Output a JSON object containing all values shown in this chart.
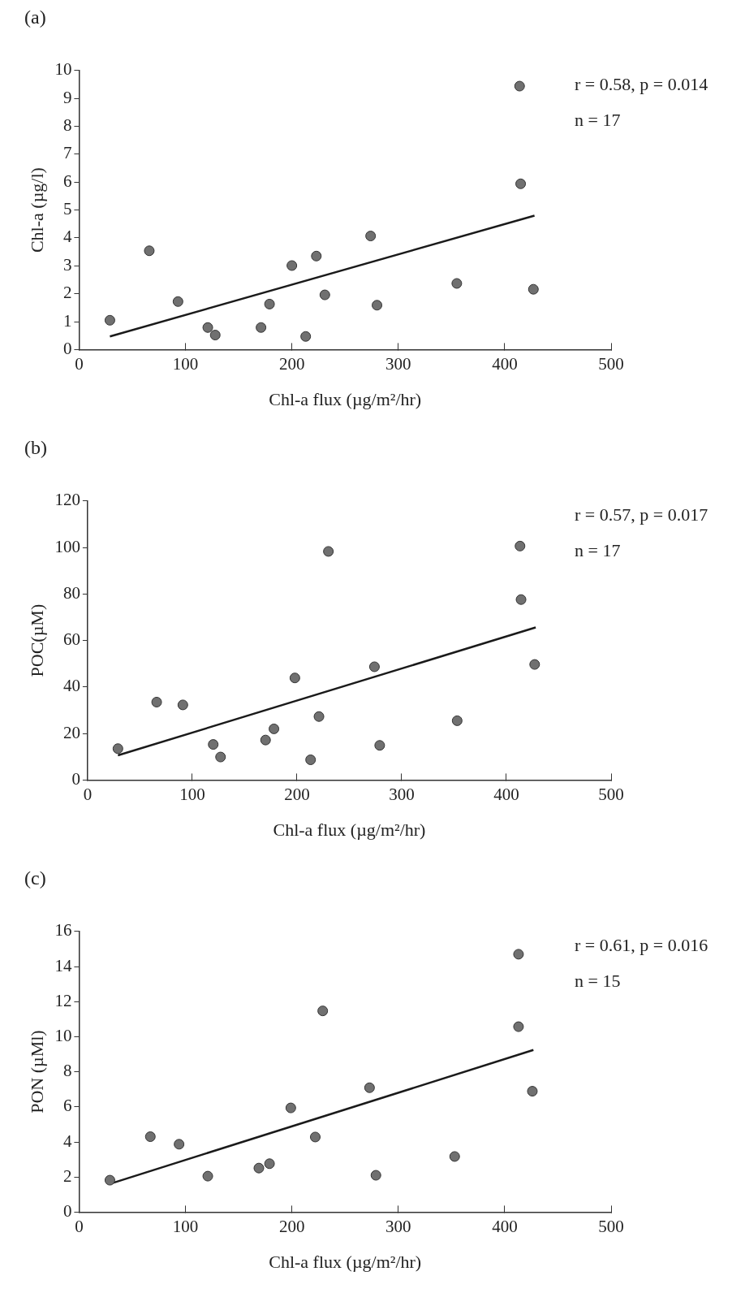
{
  "chart_data": [
    {
      "type": "scatter",
      "title": "(a)",
      "xlabel": "Chl-a flux (µg/m²/hr)",
      "ylabel": "Chl-a (µg/l)",
      "x": [
        29,
        66,
        93,
        121,
        128,
        171,
        179,
        200,
        213,
        223,
        231,
        274,
        280,
        355,
        414,
        415,
        427
      ],
      "series": [
        {
          "color": "#707070",
          "marker": "circle",
          "values": [
            1.05,
            3.54,
            1.72,
            0.79,
            0.52,
            0.79,
            1.63,
            3.01,
            0.47,
            3.35,
            1.96,
            4.07,
            1.59,
            2.37,
            9.44,
            5.94,
            2.16
          ]
        },
        {
          "type": "line",
          "color": "#1a1a1a",
          "marker": "none",
          "x": [
            29,
            428
          ],
          "values": [
            0.47,
            4.8
          ]
        }
      ],
      "xlim": [
        0,
        500
      ],
      "xticks": [
        0,
        100,
        200,
        300,
        400,
        500
      ],
      "ylim": [
        0,
        10
      ],
      "yticks": [
        0,
        1,
        2,
        3,
        4,
        5,
        6,
        7,
        8,
        9,
        10
      ],
      "annotations": [
        "r = 0.58, p = 0.014",
        "n = 17"
      ],
      "grid": false,
      "legend": false
    },
    {
      "type": "scatter",
      "title": "(b)",
      "xlabel": "Chl-a flux (µg/m²/hr)",
      "ylabel": "POC(µM)",
      "x": [
        29,
        66,
        91,
        120,
        127,
        170,
        178,
        198,
        213,
        221,
        230,
        274,
        279,
        353,
        413,
        414,
        427
      ],
      "series": [
        {
          "color": "#707070",
          "marker": "circle",
          "values": [
            13.5,
            33.5,
            32.3,
            15.3,
            9.9,
            17.2,
            22.0,
            43.9,
            8.7,
            27.3,
            98.3,
            48.7,
            14.9,
            25.5,
            100.6,
            77.6,
            49.7
          ]
        },
        {
          "type": "line",
          "color": "#1a1a1a",
          "marker": "none",
          "x": [
            29,
            428
          ],
          "values": [
            10.6,
            65.6
          ]
        }
      ],
      "xlim": [
        0,
        500
      ],
      "xticks": [
        0,
        100,
        200,
        300,
        400,
        500
      ],
      "ylim": [
        0,
        120
      ],
      "yticks": [
        0,
        20,
        40,
        60,
        80,
        100,
        120
      ],
      "annotations": [
        "r = 0.57, p = 0.017",
        "n = 17"
      ],
      "grid": false,
      "legend": false
    },
    {
      "type": "scatter",
      "title": "(c)",
      "xlabel": "Chl-a flux (µg/m²/hr)",
      "ylabel": "PON (µMl)",
      "x": [
        29,
        67,
        94,
        121,
        169,
        179,
        199,
        222,
        229,
        273,
        279,
        353,
        413,
        413,
        426
      ],
      "series": [
        {
          "color": "#707070",
          "marker": "circle",
          "values": [
            1.82,
            4.3,
            3.87,
            2.05,
            2.51,
            2.76,
            5.94,
            4.28,
            11.47,
            7.09,
            2.1,
            3.17,
            14.7,
            10.57,
            6.89
          ]
        },
        {
          "type": "line",
          "color": "#1a1a1a",
          "marker": "none",
          "x": [
            29,
            427
          ],
          "values": [
            1.61,
            9.24
          ]
        }
      ],
      "xlim": [
        0,
        500
      ],
      "xticks": [
        0,
        100,
        200,
        300,
        400,
        500
      ],
      "ylim": [
        0,
        16
      ],
      "yticks": [
        0,
        2,
        4,
        6,
        8,
        10,
        12,
        14,
        16
      ],
      "annotations": [
        "r = 0.61, p = 0.016",
        "n = 15"
      ],
      "grid": false,
      "legend": false
    }
  ]
}
